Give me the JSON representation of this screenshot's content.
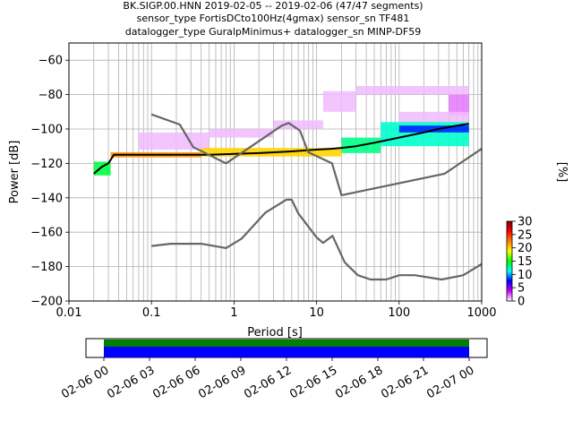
{
  "chart_data": {
    "type": "heatmap",
    "title_lines": [
      "BK.SIGP.00.HNN   2019-02-05 -- 2019-02-06  (47/47 segments)",
      "sensor_type FortisDCto100Hz(4gmax) sensor_sn TF481",
      "datalogger_type GuralpMinimus+ datalogger_sn MINP-DF59"
    ],
    "xlabel": "Period [s]",
    "ylabel": "Power [dB]",
    "xscale": "log",
    "xlim": [
      0.01,
      1000
    ],
    "ylim": [
      -200,
      -50
    ],
    "x_ticks": [
      {
        "v": 0.01,
        "label": "0.01"
      },
      {
        "v": 0.1,
        "label": "0.1"
      },
      {
        "v": 1,
        "label": "1"
      },
      {
        "v": 10,
        "label": "10"
      },
      {
        "v": 100,
        "label": "100"
      },
      {
        "v": 1000,
        "label": "1000"
      }
    ],
    "y_ticks": [
      -200,
      -180,
      -160,
      -140,
      -120,
      -100,
      -80,
      -60
    ],
    "grid": true,
    "colorbar": {
      "label": "[%]",
      "range": [
        0,
        30
      ],
      "ticks": [
        0,
        5,
        10,
        15,
        20,
        25,
        30
      ],
      "stops": [
        "#ffffff",
        "#cc00ff",
        "#0000ff",
        "#00ffff",
        "#00ff00",
        "#ffff00",
        "#ff8000",
        "#ff0000",
        "#800000"
      ]
    },
    "series": [
      {
        "name": "",
        "role": "mode",
        "color": "#000000",
        "x": [
          0.02,
          0.025,
          0.03,
          0.035,
          0.05,
          0.1,
          0.2,
          0.5,
          1,
          2,
          5,
          10,
          15,
          20,
          30,
          50,
          100,
          200,
          300,
          500,
          700
        ],
        "y": [
          -126,
          -122,
          -120,
          -115,
          -115,
          -115,
          -115,
          -115,
          -114.5,
          -114,
          -113,
          -112,
          -111.5,
          -111,
          -110,
          -108,
          -105,
          -102,
          -100,
          -98,
          -97
        ]
      },
      {
        "name": "",
        "role": "noise-model-high",
        "color": "#666666",
        "x": [
          0.1,
          0.22,
          0.32,
          0.8,
          3.8,
          4.6,
          6.3,
          7.9,
          15.4,
          20,
          354.8,
          1000
        ],
        "y": [
          -91.5,
          -97.4,
          -110.5,
          -120,
          -98,
          -96.5,
          -101,
          -113.5,
          -120,
          -138.5,
          -126,
          -111.5
        ]
      },
      {
        "name": "",
        "role": "noise-model-low",
        "color": "#666666",
        "x": [
          0.1,
          0.17,
          0.4,
          0.8,
          1.24,
          2.4,
          4.3,
          5,
          6,
          10,
          12,
          15.6,
          21.9,
          31.6,
          45,
          70,
          101,
          154,
          328,
          600,
          1000
        ],
        "y": [
          -168,
          -166.7,
          -166.7,
          -169.2,
          -163.7,
          -148.6,
          -141.1,
          -141.1,
          -149,
          -163,
          -166.2,
          -162.1,
          -177.5,
          -185,
          -187.5,
          -187.5,
          -185,
          -185,
          -187.5,
          -185,
          -178.5
        ]
      }
    ],
    "density": [
      {
        "x0": 0.02,
        "x1": 0.032,
        "y0": -127,
        "y1": -119,
        "pct": 14
      },
      {
        "x0": 0.032,
        "x1": 0.4,
        "y0": -116.5,
        "y1": -113.5,
        "pct": 22
      },
      {
        "x0": 0.4,
        "x1": 20,
        "y0": -116,
        "y1": -111,
        "pct": 20
      },
      {
        "x0": 20,
        "x1": 60,
        "y0": -114,
        "y1": -105,
        "pct": 13
      },
      {
        "x0": 60,
        "x1": 700,
        "y0": -110,
        "y1": -96,
        "pct": 12
      },
      {
        "x0": 100,
        "x1": 700,
        "y0": -102,
        "y1": -98,
        "pct": 8
      }
    ],
    "outliers": [
      {
        "x0": 0.07,
        "x1": 0.5,
        "y0": -112,
        "y1": -102,
        "pct": 1
      },
      {
        "x0": 0.5,
        "x1": 3,
        "y0": -105,
        "y1": -100,
        "pct": 1
      },
      {
        "x0": 3,
        "x1": 12,
        "y0": -100,
        "y1": -95,
        "pct": 1
      },
      {
        "x0": 12,
        "x1": 30,
        "y0": -90,
        "y1": -78,
        "pct": 1
      },
      {
        "x0": 30,
        "x1": 700,
        "y0": -80,
        "y1": -75,
        "pct": 1
      },
      {
        "x0": 400,
        "x1": 700,
        "y0": -92,
        "y1": -80,
        "pct": 2
      },
      {
        "x0": 100,
        "x1": 700,
        "y0": -97,
        "y1": -90,
        "pct": 1
      }
    ],
    "timeline": {
      "tick_labels": [
        "02-06 00",
        "02-06 03",
        "02-06 06",
        "02-06 09",
        "02-06 12",
        "02-06 15",
        "02-06 18",
        "02-06 21",
        "02-07 00"
      ],
      "bars": [
        {
          "name": "data-coverage",
          "color": "#0000ff"
        },
        {
          "name": "psd-coverage",
          "color": "#008000"
        }
      ]
    }
  }
}
